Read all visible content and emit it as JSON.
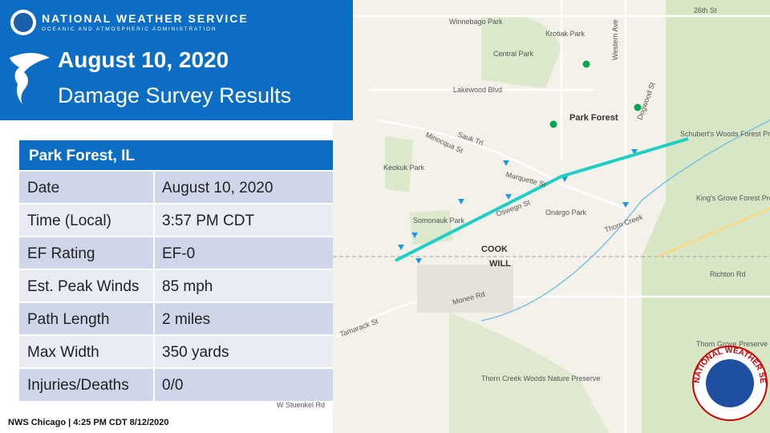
{
  "header": {
    "agency": "NATIONAL WEATHER SERVICE",
    "subagency": "OCEANIC AND ATMOSPHERIC ADMINISTRATION",
    "date": "August 10, 2020",
    "title": "Damage Survey Results"
  },
  "table": {
    "title": "Park Forest, IL",
    "rows": [
      [
        "Date",
        "August 10, 2020"
      ],
      [
        "Time (Local)",
        "3:57 PM CDT"
      ],
      [
        "EF Rating",
        "EF-0"
      ],
      [
        "Est. Peak Winds",
        "85 mph"
      ],
      [
        "Path Length",
        "2 miles"
      ],
      [
        "Max Width",
        "350 yards"
      ],
      [
        "Injuries/Deaths",
        "0/0"
      ]
    ]
  },
  "map": {
    "labels": [
      "Park Forest",
      "Winnebago Park",
      "Krotiak Park",
      "Central Park",
      "Lakewood Blvd",
      "Sauk Trl",
      "Marquette St",
      "Onargo Park",
      "Somonauk Park",
      "Keokuk Park",
      "Thorn Creek",
      "Schubert's Woods Forest Preserve",
      "King's Grove Forest Preserve",
      "COOK",
      "WILL",
      "Richton Rd",
      "Western Ave",
      "26th St",
      "Thorn Creek Woods Nature Preserve",
      "Thorn Grove Preserve",
      "Monee Rd",
      "Tamarack St",
      "W Stuenkel Rd",
      "Oswego St",
      "Minocqua St",
      "Dogwood St"
    ]
  },
  "footer": "NWS Chicago | 4:25 PM CDT 8/12/2020",
  "logo": "NATIONAL WEATHER SERVICE"
}
